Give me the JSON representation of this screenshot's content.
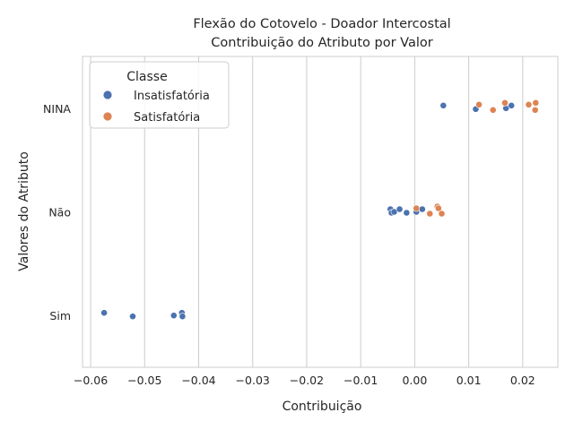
{
  "chart_data": {
    "type": "scatter",
    "title": [
      "Flexão do Cotovelo - Doador Intercostal",
      "Contribuição do Atributo por Valor"
    ],
    "xlabel": "Contribuição",
    "ylabel": "Valores do Atributo",
    "xlim": [
      -0.0615,
      0.0265
    ],
    "xticks": [
      -0.06,
      -0.05,
      -0.04,
      -0.03,
      -0.02,
      -0.01,
      0.0,
      0.01,
      0.02
    ],
    "xtick_labels": [
      "−0.06",
      "−0.05",
      "−0.04",
      "−0.03",
      "−0.02",
      "−0.01",
      "0.00",
      "0.01",
      "0.02"
    ],
    "categories": [
      "NINA",
      "Não",
      "Sim"
    ],
    "grid": "vertical",
    "legend": {
      "title": "Classe",
      "position": "upper-left"
    },
    "series": [
      {
        "name": "Insatisfatória",
        "color": "#4c72b0",
        "points": [
          {
            "x": 0.0053,
            "y": "NINA"
          },
          {
            "x": 0.0113,
            "y": "NINA"
          },
          {
            "x": 0.0169,
            "y": "NINA"
          },
          {
            "x": 0.0179,
            "y": "NINA"
          },
          {
            "x": -0.0045,
            "y": "Não"
          },
          {
            "x": -0.0043,
            "y": "Não"
          },
          {
            "x": -0.0038,
            "y": "Não"
          },
          {
            "x": -0.0028,
            "y": "Não"
          },
          {
            "x": -0.0015,
            "y": "Não"
          },
          {
            "x": 0.0003,
            "y": "Não"
          },
          {
            "x": 0.0014,
            "y": "Não"
          },
          {
            "x": -0.0575,
            "y": "Sim"
          },
          {
            "x": -0.0522,
            "y": "Sim"
          },
          {
            "x": -0.0446,
            "y": "Sim"
          },
          {
            "x": -0.0431,
            "y": "Sim"
          },
          {
            "x": -0.043,
            "y": "Sim"
          }
        ]
      },
      {
        "name": "Satisfatória",
        "color": "#dd8452",
        "points": [
          {
            "x": 0.0119,
            "y": "NINA"
          },
          {
            "x": 0.0145,
            "y": "NINA"
          },
          {
            "x": 0.0167,
            "y": "NINA"
          },
          {
            "x": 0.0211,
            "y": "NINA"
          },
          {
            "x": 0.0223,
            "y": "NINA"
          },
          {
            "x": 0.0224,
            "y": "NINA"
          },
          {
            "x": 0.0003,
            "y": "Não"
          },
          {
            "x": 0.0028,
            "y": "Não"
          },
          {
            "x": 0.0042,
            "y": "Não"
          },
          {
            "x": 0.0044,
            "y": "Não"
          },
          {
            "x": 0.005,
            "y": "Não"
          }
        ]
      }
    ]
  }
}
